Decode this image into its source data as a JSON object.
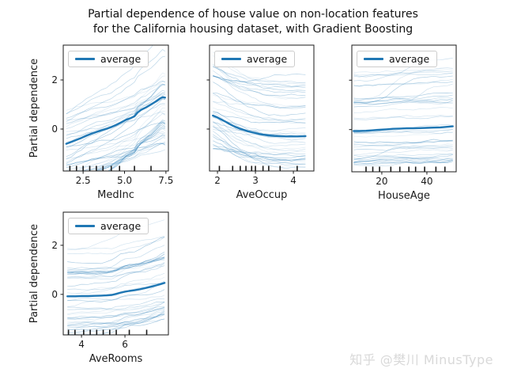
{
  "title": {
    "line1": "Partial dependence of house value on non-location features",
    "line2": "for the California housing dataset, with Gradient Boosting"
  },
  "watermark": {
    "text": "知乎 @樊川 MinusType",
    "color": "#d9d9d9"
  },
  "colors": {
    "average_line": "#1f77b4",
    "ice_line_rgb": "31,119,180",
    "axis": "#1a1a1a",
    "legend_border": "#cccccc",
    "background": "#ffffff"
  },
  "chart_data": [
    {
      "type": "line",
      "feature": "MedInc",
      "xlabel": "MedInc",
      "ylabel": "Partial dependence",
      "legend_label": "average",
      "legend_position": "upper left",
      "grid": false,
      "xlim": [
        1.3,
        7.65
      ],
      "ylim": [
        -1.71,
        3.42
      ],
      "xticks": [
        2.5,
        5.0,
        7.5
      ],
      "xtick_labels": [
        "2.5",
        "5.0",
        "7.5"
      ],
      "yticks": [
        0,
        2
      ],
      "ytick_labels": [
        "0",
        "2"
      ],
      "show_ytick_labels": true,
      "average_series": {
        "x": [
          1.48,
          1.8,
          2.1,
          2.4,
          2.7,
          3.0,
          3.3,
          3.6,
          3.9,
          4.2,
          4.5,
          4.8,
          5.1,
          5.35,
          5.6,
          5.8,
          6.0,
          6.3,
          6.6,
          6.9,
          7.15,
          7.3,
          7.45
        ],
        "y": [
          -0.6,
          -0.52,
          -0.44,
          -0.36,
          -0.27,
          -0.19,
          -0.12,
          -0.05,
          0.01,
          0.08,
          0.17,
          0.27,
          0.38,
          0.44,
          0.52,
          0.68,
          0.78,
          0.88,
          1.0,
          1.13,
          1.25,
          1.3,
          1.28
        ]
      },
      "deciles": [
        1.7,
        2.1,
        2.5,
        2.9,
        3.3,
        3.7,
        4.2,
        4.7,
        5.6,
        6.6
      ],
      "ice": {
        "count": 46,
        "seed": 3,
        "offset_min": -1.3,
        "offset_max": 2.3,
        "offset_bias": 1.7,
        "gain_min": 0.35,
        "gain_max": 1.75,
        "noise": 0.05,
        "jump_prob": 0.04,
        "jump_amp": 0.8
      }
    },
    {
      "type": "line",
      "feature": "AveOccup",
      "xlabel": "AveOccup",
      "ylabel": "",
      "legend_label": "average",
      "legend_position": "upper left",
      "grid": false,
      "xlim": [
        1.79,
        4.54
      ],
      "ylim": [
        -1.71,
        3.42
      ],
      "xticks": [
        2,
        3,
        4
      ],
      "xtick_labels": [
        "2",
        "3",
        "4"
      ],
      "yticks": [
        0,
        2
      ],
      "ytick_labels": [],
      "show_ytick_labels": false,
      "average_series": {
        "x": [
          1.88,
          2.0,
          2.1,
          2.2,
          2.3,
          2.4,
          2.5,
          2.6,
          2.7,
          2.8,
          2.9,
          3.0,
          3.1,
          3.2,
          3.35,
          3.5,
          3.65,
          3.8,
          3.95,
          4.1,
          4.32
        ],
        "y": [
          0.55,
          0.47,
          0.39,
          0.31,
          0.22,
          0.14,
          0.07,
          0.01,
          -0.04,
          -0.09,
          -0.13,
          -0.16,
          -0.2,
          -0.23,
          -0.26,
          -0.28,
          -0.29,
          -0.3,
          -0.3,
          -0.3,
          -0.29
        ]
      },
      "deciles": [
        2.05,
        2.4,
        2.6,
        2.75,
        2.9,
        3.0,
        3.2,
        3.35,
        3.65,
        4.1
      ],
      "ice": {
        "count": 46,
        "seed": 8,
        "offset_min": -1.15,
        "offset_max": 2.3,
        "offset_bias": 1.6,
        "gain_min": 0.3,
        "gain_max": 1.8,
        "noise": 0.05,
        "jump_prob": 0.03,
        "jump_amp": 0.6
      }
    },
    {
      "type": "line",
      "feature": "HouseAge",
      "xlabel": "HouseAge",
      "ylabel": "",
      "legend_label": "average",
      "legend_position": "upper left",
      "grid": false,
      "xlim": [
        6.7,
        53.0
      ],
      "ylim": [
        -1.71,
        3.42
      ],
      "xticks": [
        20,
        40
      ],
      "xtick_labels": [
        "20",
        "40"
      ],
      "yticks": [
        0,
        2
      ],
      "ytick_labels": [],
      "show_ytick_labels": false,
      "average_series": {
        "x": [
          7.5,
          10,
          13,
          16,
          19,
          22,
          25,
          28,
          31,
          34,
          37,
          40,
          43,
          46,
          49,
          51.5
        ],
        "y": [
          -0.06,
          -0.06,
          -0.05,
          -0.03,
          -0.01,
          0.01,
          0.03,
          0.04,
          0.05,
          0.05,
          0.06,
          0.07,
          0.08,
          0.09,
          0.11,
          0.13
        ]
      },
      "deciles": [
        13,
        16,
        19,
        24,
        28,
        32,
        35,
        39,
        44,
        48
      ],
      "ice": {
        "count": 46,
        "seed": 5,
        "offset_min": -1.3,
        "offset_max": 2.45,
        "offset_bias": 1.6,
        "gain_min": 0.3,
        "gain_max": 1.5,
        "noise": 0.05,
        "jump_prob": 0.15,
        "jump_amp": 1.1
      }
    },
    {
      "type": "line",
      "feature": "AveRooms",
      "xlabel": "AveRooms",
      "ylabel": "Partial dependence",
      "legend_label": "average",
      "legend_position": "upper left",
      "grid": false,
      "xlim": [
        3.16,
        8.0
      ],
      "ylim": [
        -1.65,
        3.35
      ],
      "xticks": [
        4,
        6
      ],
      "xtick_labels": [
        "4",
        "6"
      ],
      "yticks": [
        0,
        2
      ],
      "ytick_labels": [
        "0",
        "2"
      ],
      "show_ytick_labels": true,
      "average_series": {
        "x": [
          3.35,
          3.7,
          4.0,
          4.3,
          4.6,
          4.9,
          5.15,
          5.4,
          5.6,
          5.8,
          6.0,
          6.2,
          6.45,
          6.7,
          6.95,
          7.2,
          7.45,
          7.65,
          7.82
        ],
        "y": [
          -0.08,
          -0.08,
          -0.07,
          -0.07,
          -0.06,
          -0.05,
          -0.04,
          -0.02,
          0.02,
          0.07,
          0.11,
          0.14,
          0.17,
          0.21,
          0.26,
          0.31,
          0.37,
          0.42,
          0.47
        ]
      },
      "deciles": [
        3.4,
        3.7,
        4.1,
        4.4,
        4.7,
        5.0,
        5.3,
        5.6,
        6.2,
        7.0
      ],
      "ice": {
        "count": 46,
        "seed": 13,
        "offset_min": -1.3,
        "offset_max": 2.45,
        "offset_bias": 1.7,
        "gain_min": 0.4,
        "gain_max": 1.8,
        "noise": 0.05,
        "jump_prob": 0.05,
        "jump_amp": 0.7
      }
    }
  ]
}
